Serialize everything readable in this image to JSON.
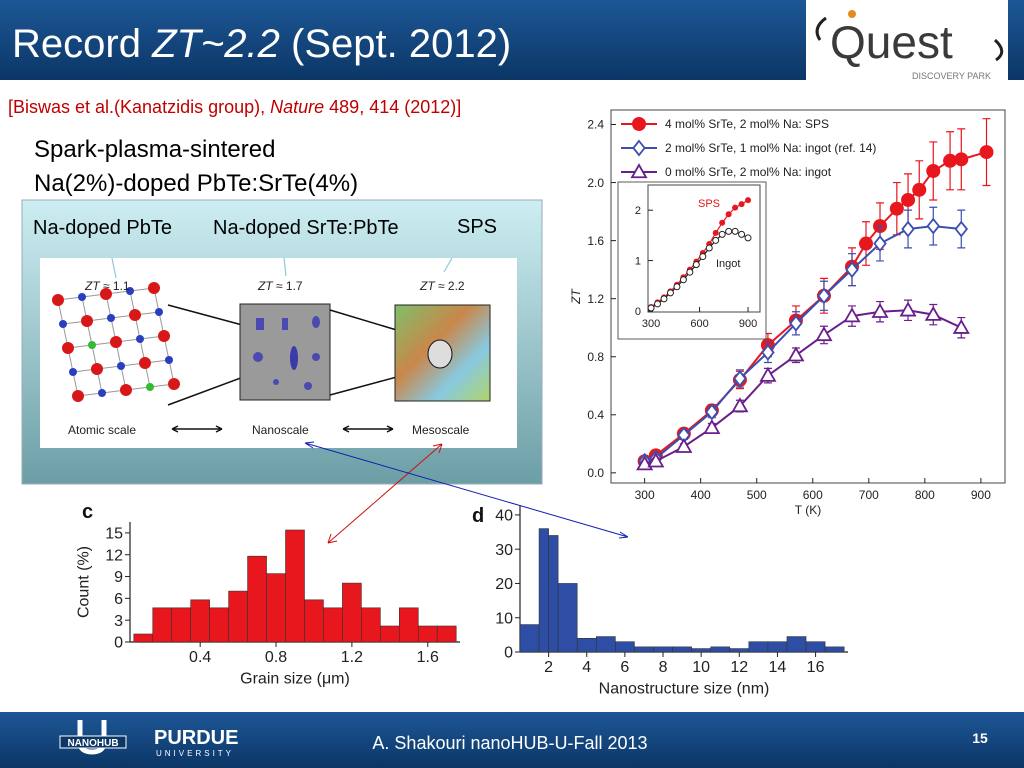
{
  "header": {
    "title": [
      "Record ",
      "ZT~2.2",
      " (Sept. 2012)"
    ],
    "reference": [
      "[Biswas et al.(Kanatzidis group), ",
      "Nature",
      " 489, 414 (2012)]"
    ]
  },
  "logo": {
    "name": "Quest",
    "subtitle": "DISCOVERY PARK"
  },
  "subtitle_lines": [
    "Spark-plasma-sintered",
    "Na(2%)-doped PbTe:SrTe(4%)"
  ],
  "figure_box": {
    "labels": [
      "Na-doped PbTe",
      "Na-doped SrTe:PbTe",
      "SPS"
    ],
    "panels": [
      {
        "zt": [
          "ZT",
          " ≈ 1.1"
        ],
        "scale": "Atomic scale"
      },
      {
        "zt": [
          "ZT",
          " ≈ 1.7"
        ],
        "scale": "Nanoscale"
      },
      {
        "zt": [
          "ZT",
          " ≈ 2.2"
        ],
        "scale": "Mesoscale"
      }
    ]
  },
  "chart_data": [
    {
      "type": "line",
      "xlabel": "T (K)",
      "ylabel": "ZT",
      "xlim": [
        240,
        943
      ],
      "ylim": [
        -0.07,
        2.5
      ],
      "xticks": [
        300,
        400,
        500,
        600,
        700,
        800,
        900
      ],
      "yticks": [
        {
          "value": 0,
          "label": "0.0"
        },
        0.4,
        0.8,
        1.2,
        1.6,
        {
          "value": 2,
          "label": "2.0"
        },
        2.4
      ],
      "legend": "upper left",
      "series": [
        {
          "name": "4 mol% SrTe, 2 mol% Na: SPS",
          "color": "#e8161d",
          "marker": "circle-filled",
          "x": [
            300,
            320,
            370,
            420,
            470,
            520,
            570,
            620,
            670,
            695,
            720,
            750,
            770,
            790,
            815,
            845,
            865,
            910
          ],
          "values": [
            0.08,
            0.12,
            0.27,
            0.43,
            0.64,
            0.88,
            1.05,
            1.22,
            1.42,
            1.58,
            1.7,
            1.82,
            1.88,
            1.95,
            2.08,
            2.15,
            2.16,
            2.21
          ],
          "errors": [
            0.02,
            0.02,
            0.03,
            0.04,
            0.06,
            0.08,
            0.1,
            0.12,
            0.13,
            0.15,
            0.16,
            0.18,
            0.18,
            0.2,
            0.2,
            0.2,
            0.21,
            0.23
          ]
        },
        {
          "name": "2 mol% SrTe, 1 mol% Na: ingot (ref. 14)",
          "color": "#3a4fb0",
          "marker": "diamond-open",
          "x": [
            300,
            320,
            370,
            420,
            470,
            520,
            570,
            620,
            670,
            720,
            770,
            815,
            865
          ],
          "values": [
            0.08,
            0.1,
            0.26,
            0.42,
            0.65,
            0.83,
            1.03,
            1.22,
            1.4,
            1.58,
            1.68,
            1.7,
            1.68
          ],
          "errors": [
            0.02,
            0.02,
            0.03,
            0.04,
            0.06,
            0.07,
            0.08,
            0.1,
            0.11,
            0.12,
            0.13,
            0.13,
            0.13
          ]
        },
        {
          "name": "0 mol% SrTe, 2 mol% Na: ingot",
          "color": "#6a1e8a",
          "marker": "triangle-open",
          "x": [
            300,
            320,
            370,
            420,
            470,
            520,
            570,
            620,
            670,
            720,
            770,
            815,
            865
          ],
          "values": [
            0.06,
            0.08,
            0.18,
            0.31,
            0.46,
            0.67,
            0.81,
            0.95,
            1.08,
            1.11,
            1.12,
            1.09,
            1.0
          ],
          "errors": [
            0.02,
            0.02,
            0.02,
            0.03,
            0.04,
            0.05,
            0.05,
            0.06,
            0.07,
            0.07,
            0.07,
            0.07,
            0.07
          ]
        }
      ]
    },
    {
      "type": "line",
      "xlim": [
        281,
        974
      ],
      "ylim": [
        -0.02,
        2.5
      ],
      "xticks": [
        300,
        600,
        900
      ],
      "yticks": [
        0,
        1,
        2
      ],
      "legend": false,
      "series": [
        {
          "name": "SPS",
          "color": "#e8161d",
          "marker": "dot",
          "x": [
            300,
            340,
            380,
            420,
            460,
            500,
            540,
            580,
            620,
            660,
            700,
            740,
            780,
            820,
            860,
            900
          ],
          "values": [
            0.08,
            0.17,
            0.27,
            0.39,
            0.52,
            0.67,
            0.82,
            0.98,
            1.15,
            1.33,
            1.55,
            1.75,
            1.92,
            2.05,
            2.12,
            2.2
          ]
        },
        {
          "name": "Ingot",
          "color": "#222222",
          "marker": "circle-open",
          "x": [
            300,
            340,
            380,
            420,
            460,
            500,
            540,
            580,
            620,
            660,
            700,
            740,
            780,
            820,
            860,
            900
          ],
          "values": [
            0.06,
            0.14,
            0.24,
            0.36,
            0.48,
            0.62,
            0.77,
            0.92,
            1.08,
            1.25,
            1.4,
            1.52,
            1.58,
            1.58,
            1.52,
            1.45
          ]
        }
      ]
    },
    {
      "type": "histogram",
      "panel_label": "c",
      "xlabel": "Grain size (μm)",
      "ylabel": "Count (%)",
      "color": "#e8161d",
      "bins": [
        0.05,
        0.15,
        0.25,
        0.35,
        0.45,
        0.55,
        0.65,
        0.75,
        0.85,
        0.95,
        1.05,
        1.15,
        1.25,
        1.35,
        1.45,
        1.55,
        1.65,
        1.75
      ],
      "values": [
        1.1,
        4.7,
        4.7,
        5.8,
        4.7,
        7.0,
        11.8,
        9.4,
        15.4,
        5.8,
        4.7,
        8.1,
        4.7,
        2.2,
        4.7,
        2.2,
        2.2
      ],
      "xlim": [
        0.03,
        1.77
      ],
      "ylim": [
        0,
        16.5
      ],
      "xticks": [
        0.4,
        0.8,
        1.2,
        1.6
      ],
      "yticks": [
        0,
        3,
        6,
        9,
        12,
        15
      ]
    },
    {
      "type": "histogram",
      "panel_label": "d",
      "xlabel": "Nanostructure size (nm)",
      "color": "#2e4ea6",
      "bins": [
        0.5,
        1.5,
        2,
        2.5,
        3.5,
        4.5,
        5.5,
        6.5,
        7.5,
        8.5,
        9.5,
        10.5,
        11.5,
        12.5,
        13.5,
        14.5,
        15.5,
        16.5,
        17.5
      ],
      "values": [
        8,
        36,
        34,
        20,
        4,
        4.5,
        3,
        1.5,
        1.5,
        1.5,
        1,
        1.5,
        1,
        3,
        3,
        4.5,
        3,
        1.5
      ],
      "xlim": [
        0.5,
        17.7
      ],
      "ylim": [
        0,
        42.6
      ],
      "xticks": [
        2,
        4,
        6,
        8,
        10,
        12,
        14,
        16
      ],
      "yticks": [
        0,
        10,
        20,
        30,
        40
      ]
    }
  ],
  "footer": {
    "text": "A. Shakouri nanoHUB-U-Fall 2013",
    "page": "15",
    "logo_left": "NANOHUB",
    "logo_right": [
      "PURDUE",
      "UNIVERSITY"
    ]
  }
}
